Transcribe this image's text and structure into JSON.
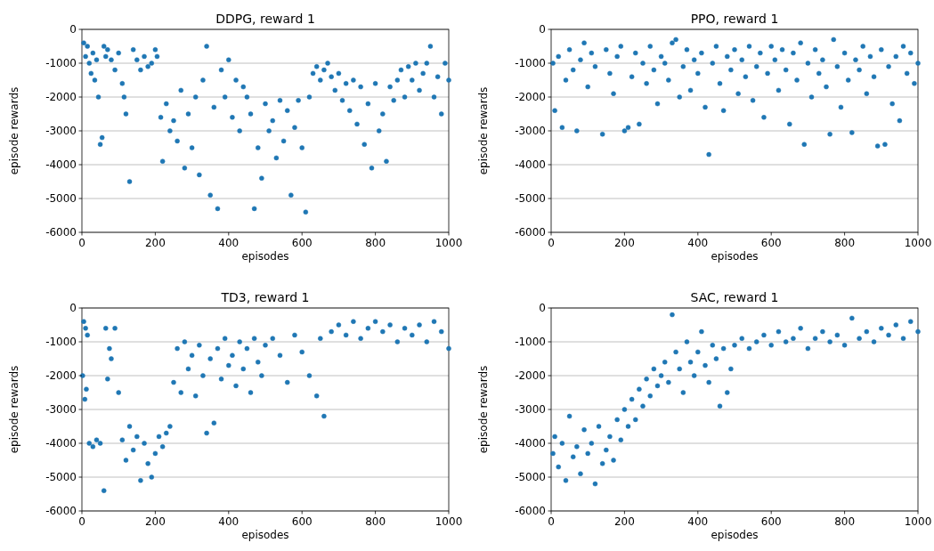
{
  "chart_data": [
    {
      "type": "scatter",
      "title": "DDPG, reward 1",
      "xlabel": "episodes",
      "ylabel": "episode rewards",
      "xlim": [
        0,
        1000
      ],
      "ylim": [
        -6000,
        0
      ],
      "xticks": [
        0,
        200,
        400,
        600,
        800,
        1000
      ],
      "yticks": [
        -6000,
        -5000,
        -4000,
        -3000,
        -2000,
        -1000,
        0
      ],
      "grid": "y",
      "marker": "circle",
      "x": [
        5,
        10,
        15,
        20,
        25,
        30,
        35,
        40,
        45,
        50,
        55,
        60,
        65,
        70,
        80,
        90,
        100,
        110,
        115,
        120,
        130,
        140,
        150,
        160,
        170,
        180,
        190,
        200,
        205,
        215,
        220,
        230,
        240,
        250,
        260,
        270,
        280,
        290,
        300,
        310,
        320,
        330,
        340,
        350,
        360,
        370,
        380,
        390,
        400,
        410,
        420,
        430,
        440,
        450,
        460,
        470,
        480,
        490,
        500,
        510,
        520,
        530,
        540,
        550,
        560,
        570,
        580,
        590,
        600,
        610,
        620,
        630,
        640,
        650,
        660,
        670,
        680,
        690,
        700,
        710,
        720,
        730,
        740,
        750,
        760,
        770,
        780,
        790,
        800,
        810,
        820,
        830,
        840,
        850,
        860,
        870,
        880,
        890,
        900,
        910,
        920,
        930,
        940,
        950,
        960,
        970,
        980,
        990,
        1000
      ],
      "series": [
        {
          "color": "#1f77b4",
          "values": [
            -400,
            -800,
            -500,
            -1000,
            -1300,
            -700,
            -1500,
            -900,
            -2000,
            -3400,
            -3200,
            -500,
            -800,
            -600,
            -900,
            -1200,
            -700,
            -1600,
            -2000,
            -2500,
            -4500,
            -600,
            -900,
            -1200,
            -800,
            -1100,
            -1000,
            -600,
            -800,
            -2600,
            -3900,
            -2200,
            -3000,
            -2700,
            -3300,
            -1800,
            -4100,
            -2500,
            -3500,
            -2000,
            -4300,
            -1500,
            -500,
            -4900,
            -2300,
            -5300,
            -1200,
            -2000,
            -900,
            -2600,
            -1500,
            -3000,
            -1700,
            -2000,
            -2500,
            -5300,
            -3500,
            -4400,
            -2200,
            -3000,
            -2700,
            -3800,
            -2100,
            -3300,
            -2400,
            -4900,
            -2900,
            -2100,
            -3500,
            -5400,
            -2000,
            -1300,
            -1100,
            -1500,
            -1200,
            -1000,
            -1400,
            -1800,
            -1300,
            -2100,
            -1600,
            -2400,
            -1500,
            -2800,
            -1700,
            -3400,
            -2200,
            -4100,
            -1600,
            -3000,
            -2500,
            -3900,
            -1700,
            -2100,
            -1500,
            -1200,
            -2000,
            -1100,
            -1500,
            -1000,
            -1800,
            -1300,
            -1000,
            -500,
            -2000,
            -1400,
            -2500,
            -1000,
            -1500
          ]
        }
      ]
    },
    {
      "type": "scatter",
      "title": "PPO, reward 1",
      "xlabel": "episodes",
      "ylabel": "episode rewards",
      "xlim": [
        0,
        1000
      ],
      "ylim": [
        -6000,
        0
      ],
      "xticks": [
        0,
        200,
        400,
        600,
        800,
        1000
      ],
      "yticks": [
        -6000,
        -5000,
        -4000,
        -3000,
        -2000,
        -1000,
        0
      ],
      "grid": "y",
      "marker": "circle",
      "x": [
        5,
        10,
        20,
        30,
        40,
        50,
        60,
        70,
        80,
        90,
        100,
        110,
        120,
        140,
        150,
        160,
        170,
        180,
        190,
        200,
        210,
        220,
        230,
        240,
        250,
        260,
        270,
        280,
        290,
        300,
        310,
        320,
        330,
        340,
        350,
        360,
        370,
        380,
        390,
        400,
        410,
        420,
        430,
        440,
        450,
        460,
        470,
        480,
        490,
        500,
        510,
        520,
        530,
        540,
        550,
        560,
        570,
        580,
        590,
        600,
        610,
        620,
        630,
        640,
        650,
        660,
        670,
        680,
        690,
        700,
        710,
        720,
        730,
        740,
        750,
        760,
        770,
        780,
        790,
        800,
        810,
        820,
        830,
        840,
        850,
        860,
        870,
        880,
        890,
        900,
        910,
        920,
        930,
        940,
        950,
        960,
        970,
        980,
        990,
        1000
      ],
      "series": [
        {
          "color": "#1f77b4",
          "values": [
            -1000,
            -2400,
            -800,
            -2900,
            -1500,
            -600,
            -1200,
            -3000,
            -900,
            -400,
            -1700,
            -700,
            -1100,
            -3100,
            -600,
            -1300,
            -1900,
            -800,
            -500,
            -3000,
            -2900,
            -1400,
            -700,
            -2800,
            -1000,
            -1600,
            -500,
            -1200,
            -2200,
            -800,
            -1000,
            -1500,
            -400,
            -300,
            -2000,
            -1100,
            -600,
            -1800,
            -900,
            -1300,
            -700,
            -2300,
            -3700,
            -1000,
            -500,
            -1600,
            -2400,
            -800,
            -1200,
            -600,
            -1900,
            -900,
            -1400,
            -500,
            -2100,
            -1100,
            -700,
            -2600,
            -1300,
            -500,
            -900,
            -1800,
            -600,
            -1200,
            -2800,
            -700,
            -1500,
            -400,
            -3400,
            -1000,
            -2000,
            -600,
            -1300,
            -900,
            -1700,
            -3100,
            -300,
            -1100,
            -2300,
            -700,
            -1500,
            -3050,
            -900,
            -1200,
            -500,
            -1900,
            -800,
            -1400,
            -3450,
            -600,
            -3400,
            -1100,
            -2200,
            -800,
            -2700,
            -500,
            -1300,
            -700,
            -1600,
            -1000
          ]
        }
      ]
    },
    {
      "type": "scatter",
      "title": "TD3, reward 1",
      "xlabel": "episodes",
      "ylabel": "episode rewards",
      "xlim": [
        0,
        1000
      ],
      "ylim": [
        -6000,
        0
      ],
      "xticks": [
        0,
        200,
        400,
        600,
        800,
        1000
      ],
      "yticks": [
        -6000,
        -5000,
        -4000,
        -3000,
        -2000,
        -1000,
        0
      ],
      "grid": "y",
      "marker": "circle",
      "x": [
        2,
        5,
        8,
        10,
        12,
        15,
        20,
        30,
        40,
        50,
        60,
        65,
        70,
        75,
        80,
        90,
        100,
        110,
        120,
        130,
        140,
        150,
        160,
        170,
        180,
        190,
        200,
        210,
        220,
        230,
        240,
        250,
        260,
        270,
        280,
        290,
        300,
        310,
        320,
        330,
        340,
        350,
        360,
        370,
        380,
        390,
        400,
        410,
        420,
        430,
        440,
        450,
        460,
        470,
        480,
        490,
        500,
        520,
        540,
        560,
        580,
        600,
        620,
        640,
        650,
        660,
        680,
        700,
        720,
        740,
        760,
        780,
        800,
        820,
        840,
        860,
        880,
        900,
        920,
        940,
        960,
        980,
        1000
      ],
      "series": [
        {
          "color": "#1f77b4",
          "values": [
            -2000,
            -400,
            -2700,
            -600,
            -2400,
            -800,
            -4000,
            -4100,
            -3900,
            -4000,
            -5400,
            -600,
            -2100,
            -1200,
            -1500,
            -600,
            -2500,
            -3900,
            -4500,
            -3500,
            -4200,
            -3800,
            -5100,
            -4000,
            -4600,
            -5000,
            -4300,
            -3800,
            -4100,
            -3700,
            -3500,
            -2200,
            -1200,
            -2500,
            -1000,
            -1800,
            -1400,
            -2600,
            -1100,
            -2000,
            -3700,
            -1500,
            -3400,
            -1200,
            -2100,
            -900,
            -1700,
            -1400,
            -2300,
            -1000,
            -1800,
            -1200,
            -2500,
            -900,
            -1600,
            -2000,
            -1100,
            -900,
            -1400,
            -2200,
            -800,
            -1300,
            -2000,
            -2600,
            -900,
            -3200,
            -700,
            -500,
            -800,
            -400,
            -900,
            -600,
            -400,
            -700,
            -500,
            -1000,
            -600,
            -800,
            -500,
            -1000,
            -400,
            -700,
            -1200
          ]
        }
      ]
    },
    {
      "type": "scatter",
      "title": "SAC, reward 1",
      "xlabel": "episodes",
      "ylabel": "episode rewards",
      "xlim": [
        0,
        1000
      ],
      "ylim": [
        -6000,
        0
      ],
      "xticks": [
        0,
        200,
        400,
        600,
        800,
        1000
      ],
      "yticks": [
        -6000,
        -5000,
        -4000,
        -3000,
        -2000,
        -1000,
        0
      ],
      "grid": "y",
      "marker": "circle",
      "x": [
        5,
        10,
        20,
        30,
        40,
        50,
        60,
        70,
        80,
        90,
        100,
        110,
        120,
        130,
        140,
        150,
        160,
        170,
        180,
        190,
        200,
        210,
        220,
        230,
        240,
        250,
        260,
        270,
        280,
        290,
        300,
        310,
        320,
        330,
        340,
        350,
        360,
        370,
        380,
        390,
        400,
        410,
        420,
        430,
        440,
        450,
        460,
        470,
        480,
        490,
        500,
        520,
        540,
        560,
        580,
        600,
        620,
        640,
        660,
        680,
        700,
        720,
        740,
        760,
        780,
        800,
        820,
        840,
        860,
        880,
        900,
        920,
        940,
        960,
        980,
        1000
      ],
      "series": [
        {
          "color": "#1f77b4",
          "values": [
            -4300,
            -3800,
            -4700,
            -4000,
            -5100,
            -3200,
            -4400,
            -4100,
            -4900,
            -3600,
            -4300,
            -4000,
            -5200,
            -3500,
            -4600,
            -4200,
            -3800,
            -4500,
            -3300,
            -3900,
            -3000,
            -3500,
            -2700,
            -3300,
            -2400,
            -2900,
            -2100,
            -2600,
            -1800,
            -2300,
            -2000,
            -1600,
            -2200,
            -200,
            -1300,
            -1800,
            -2500,
            -1000,
            -1600,
            -2000,
            -1300,
            -700,
            -1700,
            -2200,
            -1100,
            -1500,
            -2900,
            -1200,
            -2500,
            -1800,
            -1100,
            -900,
            -1200,
            -1000,
            -800,
            -1100,
            -700,
            -1000,
            -900,
            -600,
            -1200,
            -900,
            -700,
            -1000,
            -800,
            -1100,
            -300,
            -900,
            -700,
            -1000,
            -600,
            -800,
            -500,
            -900,
            -400,
            -700
          ]
        }
      ]
    }
  ]
}
